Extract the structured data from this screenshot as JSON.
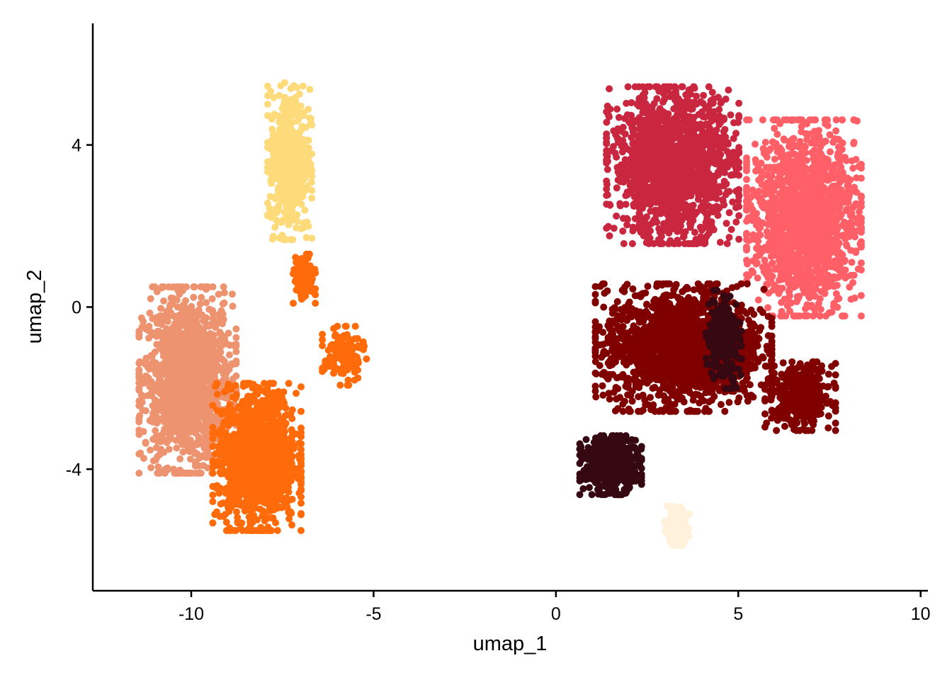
{
  "chart_data": {
    "type": "scatter",
    "title": "",
    "xlabel": "umap_1",
    "ylabel": "umap_2",
    "xlim": [
      -12.7,
      10.2
    ],
    "ylim": [
      -7.0,
      7.0
    ],
    "x_ticks": [
      -10,
      -5,
      0,
      5,
      10
    ],
    "x_tick_labels": [
      "-10",
      "-5",
      "0",
      "5",
      "10"
    ],
    "y_ticks": [
      -4,
      0,
      4
    ],
    "y_tick_labels": [
      "-4",
      "0",
      "4"
    ],
    "grid": false,
    "legend": "none",
    "clusters": [
      {
        "color": "#EE9370",
        "center": [
          -10.1,
          -1.8
        ],
        "spread": [
          1.1,
          1.9
        ],
        "points": 1400
      },
      {
        "color": "#FDDA7A",
        "center": [
          -7.3,
          3.6
        ],
        "spread": [
          0.5,
          1.6
        ],
        "points": 500
      },
      {
        "color": "#FF6A0A",
        "center": [
          -8.2,
          -3.7
        ],
        "spread": [
          1.0,
          1.5
        ],
        "points": 1300
      },
      {
        "color": "#FF6A0A",
        "center": [
          -6.9,
          0.7
        ],
        "spread": [
          0.25,
          0.5
        ],
        "points": 120
      },
      {
        "color": "#FF6A0A",
        "center": [
          -5.8,
          -1.2
        ],
        "spread": [
          0.5,
          0.6
        ],
        "points": 150
      },
      {
        "color": "#C9263F",
        "center": [
          3.2,
          3.5
        ],
        "spread": [
          1.5,
          1.6
        ],
        "points": 1500
      },
      {
        "color": "#FF6068",
        "center": [
          6.8,
          2.2
        ],
        "spread": [
          1.3,
          2.0
        ],
        "points": 1500
      },
      {
        "color": "#800000",
        "center": [
          3.5,
          -1.0
        ],
        "spread": [
          2.0,
          1.3
        ],
        "points": 1700
      },
      {
        "color": "#800000",
        "center": [
          6.7,
          -2.2
        ],
        "spread": [
          0.8,
          0.7
        ],
        "points": 350
      },
      {
        "color": "#360812",
        "center": [
          1.5,
          -3.9
        ],
        "spread": [
          0.7,
          0.6
        ],
        "points": 500
      },
      {
        "color": "#360812",
        "center": [
          4.6,
          -0.8
        ],
        "spread": [
          0.4,
          1.0
        ],
        "points": 250
      },
      {
        "color": "#FFF1DA",
        "center": [
          3.3,
          -5.4
        ],
        "spread": [
          0.3,
          0.4
        ],
        "points": 160
      }
    ]
  }
}
